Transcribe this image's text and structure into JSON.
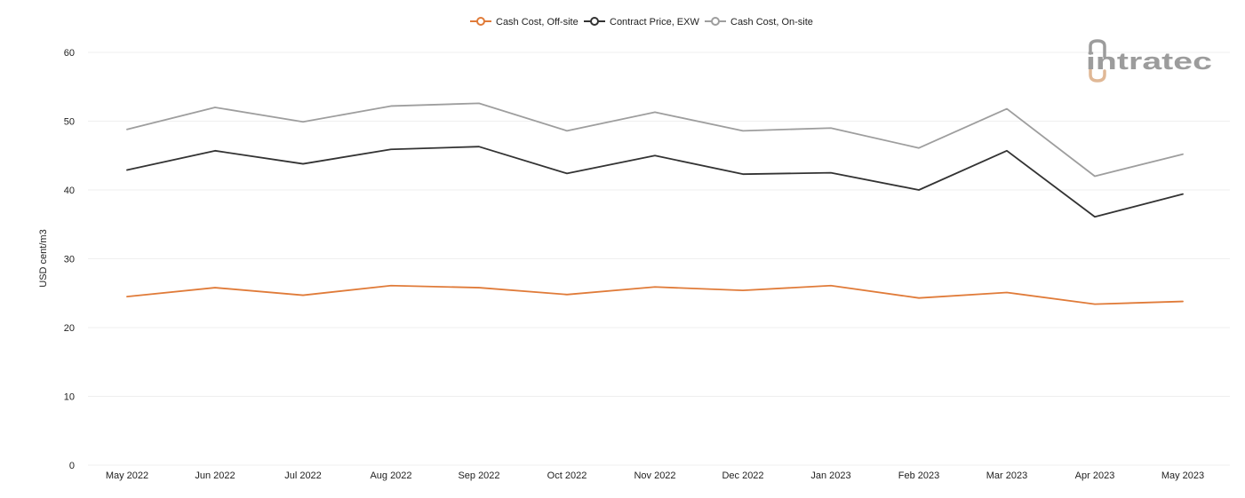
{
  "logo": {
    "text": "intratec",
    "mark_color": "#e0b896",
    "text_color": "#9c9c9c"
  },
  "chart_data": {
    "type": "line",
    "title": "",
    "xlabel": "",
    "ylabel": "USD cent/m3",
    "ylim": [
      0,
      60
    ],
    "yticks": [
      0,
      10,
      20,
      30,
      40,
      50,
      60
    ],
    "grid": true,
    "legend_position": "top-center",
    "categories": [
      "May 2022",
      "Jun 2022",
      "Jul 2022",
      "Aug 2022",
      "Sep 2022",
      "Oct 2022",
      "Nov 2022",
      "Dec 2022",
      "Jan 2023",
      "Feb 2023",
      "Mar 2023",
      "Apr 2023",
      "May 2023"
    ],
    "series": [
      {
        "name": "Cash Cost, Off-site",
        "color": "#e07b39",
        "values": [
          24.5,
          25.8,
          24.7,
          26.1,
          25.8,
          24.8,
          25.9,
          25.4,
          26.1,
          24.3,
          25.1,
          23.4,
          23.8
        ]
      },
      {
        "name": "Contract Price, EXW",
        "color": "#333333",
        "values": [
          42.9,
          45.7,
          43.8,
          45.9,
          46.3,
          42.4,
          45.0,
          42.3,
          42.5,
          40.0,
          45.7,
          36.1,
          39.4
        ]
      },
      {
        "name": "Cash Cost, On-site",
        "color": "#9e9e9e",
        "values": [
          48.8,
          52.0,
          49.9,
          52.2,
          52.6,
          48.6,
          51.3,
          48.6,
          49.0,
          46.1,
          51.8,
          42.0,
          45.2
        ]
      }
    ]
  }
}
